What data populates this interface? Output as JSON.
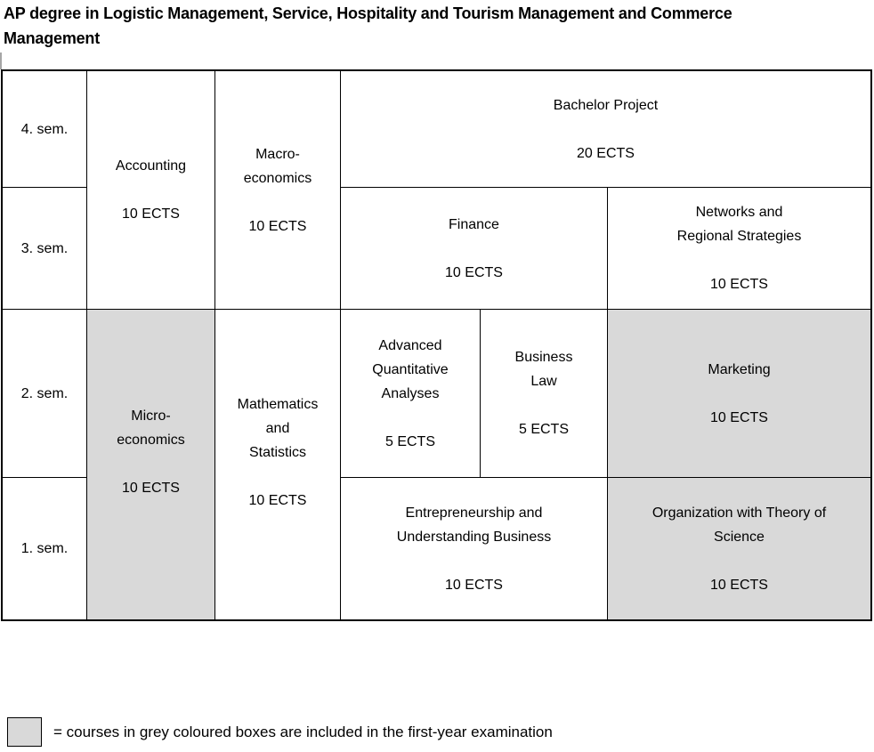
{
  "title": "AP degree in Logistic Management, Service, Hospitality and Tourism Management and Commerce Management",
  "table": {
    "semester_labels": {
      "sem4": "4. sem.",
      "sem3": "3. sem.",
      "sem2": "2. sem.",
      "sem1": "1. sem."
    },
    "courses": {
      "accounting": "Accounting\n\n10 ECTS",
      "macroeconomics": "Macro-\neconomics\n\n10 ECTS",
      "bachelor_project": "Bachelor Project\n\n20 ECTS",
      "finance": "Finance\n\n10 ECTS",
      "networks_regional_strategies": "Networks and\nRegional Strategies\n\n10 ECTS",
      "microeconomics": "Micro-\neconomics\n\n10 ECTS",
      "mathematics_statistics": "Mathematics\nand\nStatistics\n\n10 ECTS",
      "advanced_quantitative_analyses": "Advanced\nQuantitative\nAnalyses\n\n5 ECTS",
      "business_law": "Business\nLaw\n\n5 ECTS",
      "marketing": "Marketing\n\n10 ECTS",
      "entrepreneurship": "Entrepreneurship and\nUnderstanding Business\n\n10 ECTS",
      "organization_theory_of_science": "Organization with Theory of\nScience\n\n10 ECTS"
    }
  },
  "legend": {
    "text": "= courses in grey coloured boxes are included in the first-year examination"
  },
  "colors": {
    "grey_box": "#d9d9d9",
    "border": "#000000",
    "background": "#ffffff"
  }
}
